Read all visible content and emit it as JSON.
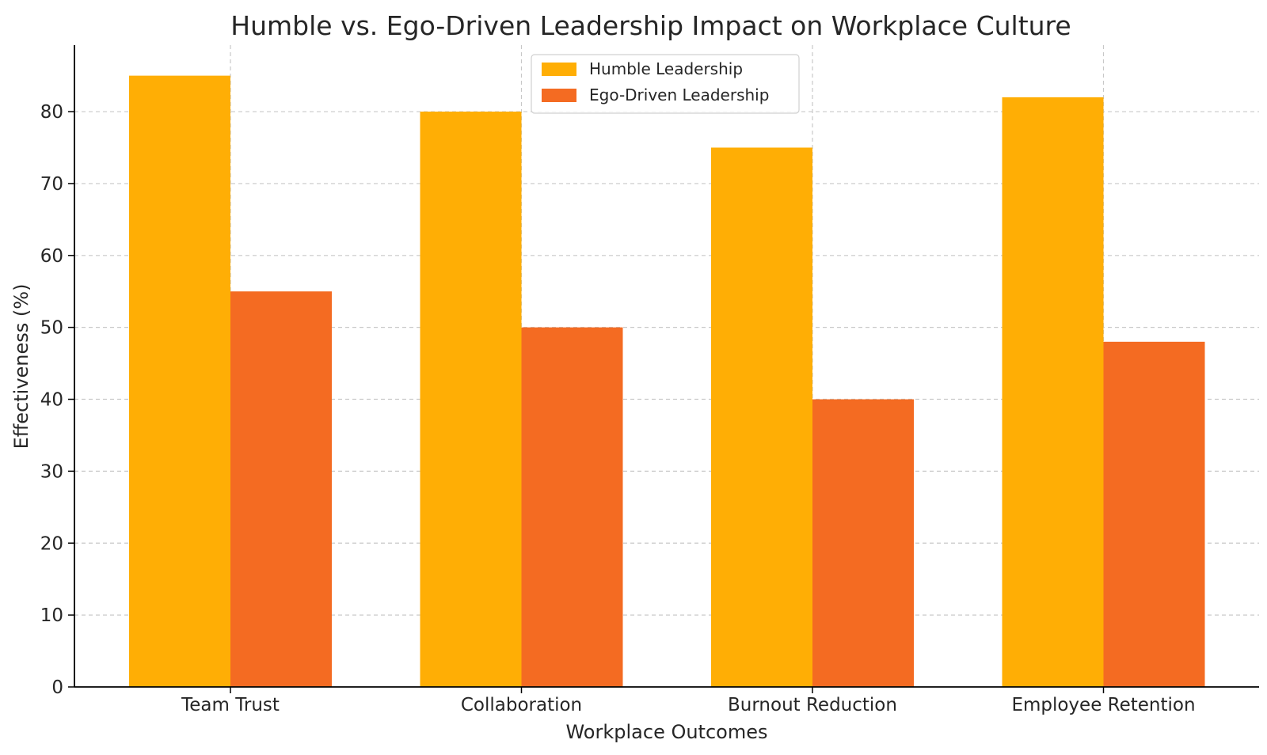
{
  "chart_data": {
    "type": "bar",
    "title": "Humble vs. Ego-Driven Leadership Impact on Workplace Culture",
    "xlabel": "Workplace Outcomes",
    "ylabel": "Effectiveness (%)",
    "categories": [
      "Team Trust",
      "Collaboration",
      "Burnout Reduction",
      "Employee Retention"
    ],
    "series": [
      {
        "name": "Humble Leadership",
        "color": "#FFAE05",
        "values": [
          85,
          80,
          75,
          82
        ]
      },
      {
        "name": "Ego-Driven Leadership",
        "color": "#F46B22",
        "values": [
          55,
          50,
          40,
          48
        ]
      }
    ],
    "ylim": [
      0,
      89.25
    ],
    "yticks": [
      0,
      10,
      20,
      30,
      40,
      50,
      60,
      70,
      80
    ],
    "grid": true,
    "legend_position": "top-center"
  }
}
